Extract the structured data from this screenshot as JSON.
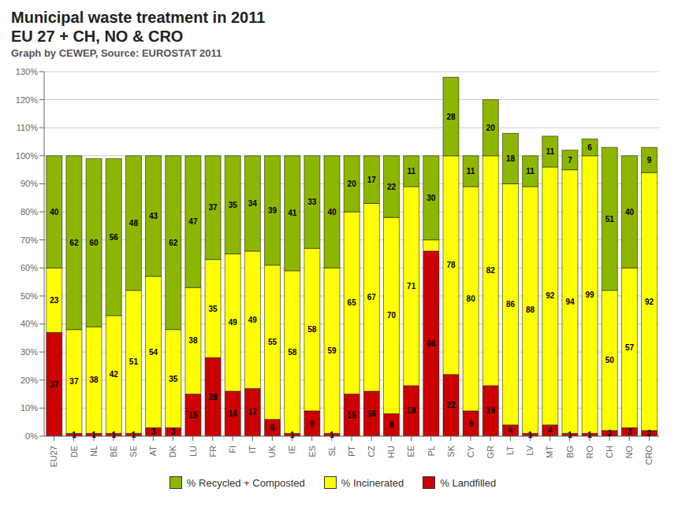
{
  "chart_data": {
    "type": "bar",
    "title": [
      "Municipal waste treatment in 2011",
      "EU 27 + CH, NO & CRO"
    ],
    "subtitle": "Graph by CEWEP, Source: EUROSTAT 2011",
    "categories": [
      "EU27",
      "DE",
      "NL",
      "BE",
      "SE",
      "AT",
      "DK",
      "LU",
      "FR",
      "FI",
      "IT",
      "UK",
      "IE",
      "ES",
      "SL",
      "PT",
      "CZ",
      "HU",
      "EE",
      "PL",
      "SK",
      "CY",
      "GR",
      "LT",
      "LV",
      "MT",
      "BG",
      "RO",
      "CH",
      "NO",
      "CRO"
    ],
    "series": [
      {
        "name": "% Landfilled",
        "color": "#cc0000",
        "values": [
          37,
          1,
          1,
          1,
          1,
          3,
          3,
          15,
          28,
          16,
          17,
          6,
          1,
          9,
          1,
          15,
          16,
          8,
          18,
          66,
          22,
          9,
          18,
          4,
          1,
          4,
          1,
          1,
          2,
          3,
          2
        ]
      },
      {
        "name": "% Incinerated",
        "color": "#ffff00",
        "values": [
          23,
          37,
          38,
          42,
          51,
          54,
          35,
          38,
          35,
          49,
          49,
          55,
          58,
          58,
          59,
          65,
          67,
          70,
          71,
          4,
          78,
          80,
          82,
          86,
          88,
          92,
          94,
          99,
          50,
          57,
          92
        ],
        "value_labels": [
          "23",
          "37",
          "38",
          "42",
          "51",
          "54",
          "35",
          "38",
          "35",
          "49",
          "49",
          "55",
          "58",
          "58",
          "59",
          "65",
          "67",
          "70",
          "71",
          null,
          "78",
          "80",
          "82",
          "86",
          "88",
          "92",
          "94",
          "99",
          "50",
          "57",
          "92"
        ]
      },
      {
        "name": "% Recycled + Composted",
        "color": "#8db600",
        "values": [
          40,
          62,
          60,
          56,
          48,
          43,
          62,
          47,
          37,
          35,
          34,
          39,
          41,
          33,
          40,
          20,
          17,
          22,
          11,
          30,
          28,
          11,
          20,
          18,
          11,
          11,
          7,
          6,
          51,
          40,
          9
        ]
      }
    ],
    "stacked": true,
    "data_labels": true,
    "ylim": [
      0,
      130
    ],
    "yticks": [
      {
        "value": 0,
        "label": "0%"
      },
      {
        "value": 10,
        "label": "10%"
      },
      {
        "value": 20,
        "label": "20%"
      },
      {
        "value": 30,
        "label": "30%"
      },
      {
        "value": 40,
        "label": "40%"
      },
      {
        "value": 50,
        "label": "50%"
      },
      {
        "value": 60,
        "label": "60%"
      },
      {
        "value": 70,
        "label": "70%"
      },
      {
        "value": 80,
        "label": "80%"
      },
      {
        "value": 90,
        "label": "90%"
      },
      {
        "value": 100,
        "label": "100%"
      },
      {
        "value": 110,
        "label": "110%"
      },
      {
        "value": 120,
        "label": "120%"
      },
      {
        "value": 130,
        "label": "130%"
      }
    ],
    "grid": true,
    "legend": "bottom"
  }
}
